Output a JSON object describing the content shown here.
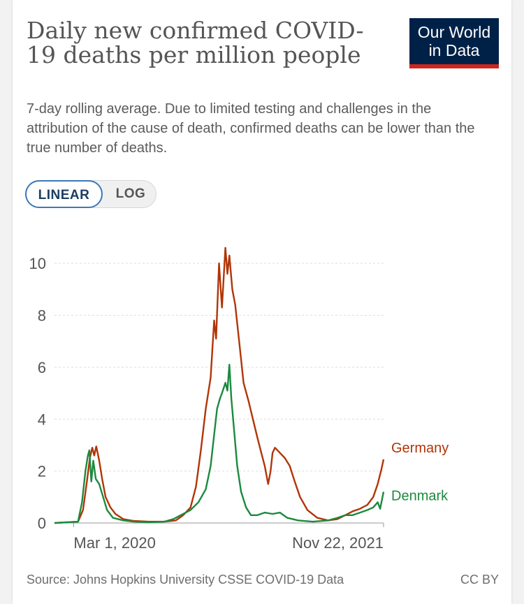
{
  "header": {
    "title": "Daily new confirmed COVID-19 deaths per million people",
    "subtitle": "7-day rolling average. Due to limited testing and challenges in the attribution of the cause of death, confirmed deaths can be lower than the true number of deaths.",
    "logo_line1": "Our World",
    "logo_line2": "in Data"
  },
  "toggle": {
    "linear_label": "LINEAR",
    "log_label": "LOG",
    "selected": "LINEAR"
  },
  "footer": {
    "source": "Source: Johns Hopkins University CSSE COVID-19 Data",
    "license": "CC BY"
  },
  "colors": {
    "germany": "#b13507",
    "denmark": "#1b8a3e",
    "grid": "#dddddd",
    "text": "#555555"
  },
  "chart_data": {
    "type": "line",
    "title": "Daily new confirmed COVID-19 deaths per million people",
    "x_start": "2020-01-22",
    "x_end": "2021-11-22",
    "x_tick_labels": [
      "Mar 1, 2020",
      "Nov 22, 2021"
    ],
    "x_tick_dates": [
      "2020-03-01",
      "2021-11-22"
    ],
    "ylim": [
      0,
      11
    ],
    "y_ticks": [
      0,
      2,
      4,
      6,
      8,
      10
    ],
    "grid": true,
    "legend": "end-labels",
    "series": [
      {
        "name": "Germany",
        "points": [
          [
            "2020-01-22",
            0
          ],
          [
            "2020-03-10",
            0.05
          ],
          [
            "2020-03-20",
            0.5
          ],
          [
            "2020-03-28",
            1.6
          ],
          [
            "2020-04-03",
            2.5
          ],
          [
            "2020-04-08",
            2.9
          ],
          [
            "2020-04-12",
            2.6
          ],
          [
            "2020-04-16",
            2.95
          ],
          [
            "2020-04-22",
            2.4
          ],
          [
            "2020-04-28",
            1.7
          ],
          [
            "2020-05-05",
            1.0
          ],
          [
            "2020-05-15",
            0.6
          ],
          [
            "2020-05-25",
            0.35
          ],
          [
            "2020-06-10",
            0.15
          ],
          [
            "2020-07-01",
            0.08
          ],
          [
            "2020-08-01",
            0.05
          ],
          [
            "2020-09-01",
            0.05
          ],
          [
            "2020-09-25",
            0.1
          ],
          [
            "2020-10-10",
            0.3
          ],
          [
            "2020-10-25",
            0.6
          ],
          [
            "2020-11-05",
            1.4
          ],
          [
            "2020-11-15",
            2.8
          ],
          [
            "2020-11-25",
            4.4
          ],
          [
            "2020-12-05",
            5.6
          ],
          [
            "2020-12-12",
            7.8
          ],
          [
            "2020-12-16",
            7.1
          ],
          [
            "2020-12-22",
            10.0
          ],
          [
            "2020-12-28",
            8.3
          ],
          [
            "2021-01-04",
            10.6
          ],
          [
            "2021-01-08",
            9.6
          ],
          [
            "2021-01-12",
            10.3
          ],
          [
            "2021-01-18",
            9.0
          ],
          [
            "2021-01-24",
            8.4
          ],
          [
            "2021-02-01",
            7.0
          ],
          [
            "2021-02-10",
            5.4
          ],
          [
            "2021-02-20",
            4.7
          ],
          [
            "2021-03-01",
            4.0
          ],
          [
            "2021-03-10",
            3.3
          ],
          [
            "2021-03-18",
            2.7
          ],
          [
            "2021-03-25",
            2.2
          ],
          [
            "2021-04-01",
            1.5
          ],
          [
            "2021-04-06",
            2.0
          ],
          [
            "2021-04-10",
            2.7
          ],
          [
            "2021-04-15",
            2.9
          ],
          [
            "2021-04-25",
            2.7
          ],
          [
            "2021-05-05",
            2.5
          ],
          [
            "2021-05-15",
            2.2
          ],
          [
            "2021-05-25",
            1.6
          ],
          [
            "2021-06-05",
            1.0
          ],
          [
            "2021-06-20",
            0.5
          ],
          [
            "2021-07-10",
            0.2
          ],
          [
            "2021-08-01",
            0.1
          ],
          [
            "2021-08-20",
            0.15
          ],
          [
            "2021-09-05",
            0.3
          ],
          [
            "2021-09-20",
            0.45
          ],
          [
            "2021-10-05",
            0.55
          ],
          [
            "2021-10-20",
            0.7
          ],
          [
            "2021-11-01",
            1.0
          ],
          [
            "2021-11-10",
            1.5
          ],
          [
            "2021-11-18",
            2.1
          ],
          [
            "2021-11-22",
            2.45
          ]
        ]
      },
      {
        "name": "Denmark",
        "points": [
          [
            "2020-01-22",
            0
          ],
          [
            "2020-03-10",
            0.05
          ],
          [
            "2020-03-18",
            0.8
          ],
          [
            "2020-03-25",
            2.0
          ],
          [
            "2020-03-30",
            2.6
          ],
          [
            "2020-04-02",
            2.8
          ],
          [
            "2020-04-06",
            1.6
          ],
          [
            "2020-04-10",
            2.4
          ],
          [
            "2020-04-15",
            1.7
          ],
          [
            "2020-04-22",
            1.5
          ],
          [
            "2020-04-30",
            1.0
          ],
          [
            "2020-05-08",
            0.5
          ],
          [
            "2020-05-20",
            0.2
          ],
          [
            "2020-06-10",
            0.1
          ],
          [
            "2020-07-01",
            0.05
          ],
          [
            "2020-08-01",
            0.03
          ],
          [
            "2020-09-01",
            0.05
          ],
          [
            "2020-09-20",
            0.15
          ],
          [
            "2020-10-05",
            0.3
          ],
          [
            "2020-10-25",
            0.5
          ],
          [
            "2020-11-10",
            0.8
          ],
          [
            "2020-11-25",
            1.3
          ],
          [
            "2020-12-05",
            2.2
          ],
          [
            "2020-12-12",
            3.4
          ],
          [
            "2020-12-18",
            4.4
          ],
          [
            "2020-12-24",
            4.8
          ],
          [
            "2020-12-28",
            5.0
          ],
          [
            "2021-01-04",
            5.4
          ],
          [
            "2021-01-08",
            5.1
          ],
          [
            "2021-01-12",
            6.1
          ],
          [
            "2021-01-16",
            4.8
          ],
          [
            "2021-01-22",
            3.5
          ],
          [
            "2021-01-28",
            2.2
          ],
          [
            "2021-02-05",
            1.2
          ],
          [
            "2021-02-15",
            0.6
          ],
          [
            "2021-02-25",
            0.3
          ],
          [
            "2021-03-10",
            0.3
          ],
          [
            "2021-03-25",
            0.4
          ],
          [
            "2021-04-10",
            0.35
          ],
          [
            "2021-04-25",
            0.4
          ],
          [
            "2021-05-10",
            0.2
          ],
          [
            "2021-06-01",
            0.1
          ],
          [
            "2021-07-01",
            0.05
          ],
          [
            "2021-08-01",
            0.1
          ],
          [
            "2021-08-20",
            0.2
          ],
          [
            "2021-09-05",
            0.3
          ],
          [
            "2021-09-20",
            0.3
          ],
          [
            "2021-10-05",
            0.4
          ],
          [
            "2021-10-20",
            0.5
          ],
          [
            "2021-11-01",
            0.6
          ],
          [
            "2021-11-10",
            0.8
          ],
          [
            "2021-11-15",
            0.55
          ],
          [
            "2021-11-22",
            1.2
          ]
        ]
      }
    ]
  }
}
